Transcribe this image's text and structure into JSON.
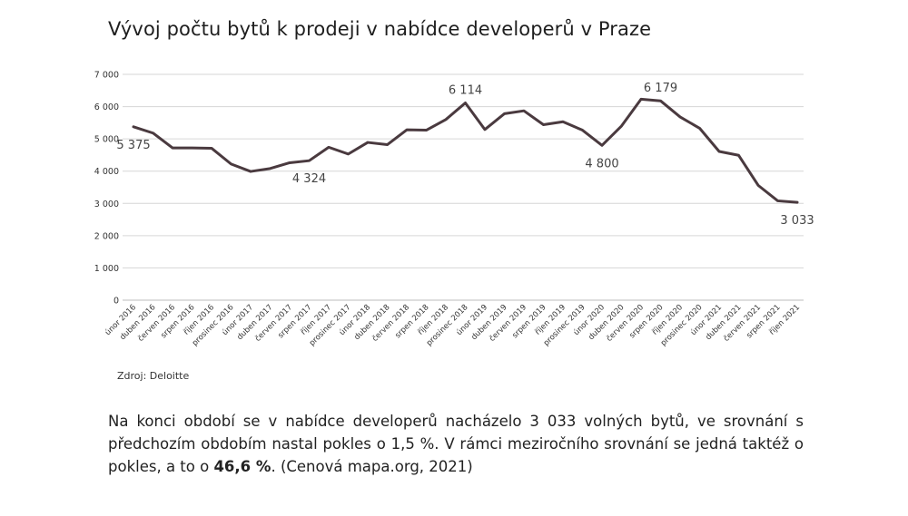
{
  "title": "Vývoj počtu bytů k prodeji v nabídce developerů v Praze",
  "source": "Zdroj: Deloitte",
  "paragraph": {
    "before": "Na konci období se v nabídce developerů nacházelo 3 033 volných bytů, ve srovnání s předchozím obdobím nastal pokles o 1,5 %. V rámci meziročního srovnání se jedná taktéž o pokles, a to o ",
    "highlight": "46,6 %",
    "after": ". (Cenová mapa.org, 2021)"
  },
  "chart_data": {
    "type": "line",
    "title": "Vývoj počtu bytů k prodeji v nabídce developerů v Praze",
    "xlabel": "",
    "ylabel": "",
    "ylim": [
      0,
      7000
    ],
    "yticks": [
      0,
      1000,
      2000,
      3000,
      4000,
      5000,
      6000,
      7000
    ],
    "ytick_labels": [
      "0",
      "1 000",
      "2 000",
      "3 000",
      "4 000",
      "5 000",
      "6 000",
      "7 000"
    ],
    "grid": true,
    "line_color": "#4a3a3f",
    "categories": [
      "únor 2016",
      "duben 2016",
      "červen 2016",
      "srpen 2016",
      "říjen 2016",
      "prosinec 2016",
      "únor 2017",
      "duben 2017",
      "červen 2017",
      "srpen 2017",
      "říjen 2017",
      "prosinec 2017",
      "únor 2018",
      "duben 2018",
      "červen 2018",
      "srpen 2018",
      "říjen 2018",
      "prosinec 2018",
      "únor 2019",
      "duben 2019",
      "červen 2019",
      "srpen 2019",
      "říjen 2019",
      "prosinec 2019",
      "únor 2020",
      "duben 2020",
      "červen 2020",
      "srpen 2020",
      "říjen 2020",
      "prosinec 2020",
      "únor 2021",
      "duben 2021",
      "červen 2021",
      "srpen 2021",
      "říjen 2021"
    ],
    "values": [
      5375,
      5180,
      4720,
      4720,
      4710,
      4220,
      3990,
      4080,
      4260,
      4324,
      4740,
      4530,
      4890,
      4820,
      5280,
      5270,
      5600,
      6114,
      5290,
      5780,
      5870,
      5440,
      5530,
      5270,
      4800,
      5400,
      6230,
      6179,
      5680,
      5330,
      4610,
      4490,
      3560,
      3080,
      3033
    ],
    "annotations": [
      {
        "index": 0,
        "text": "5 375",
        "position": "below"
      },
      {
        "index": 9,
        "text": "4 324",
        "position": "below"
      },
      {
        "index": 17,
        "text": "6 114",
        "position": "above"
      },
      {
        "index": 24,
        "text": "4 800",
        "position": "below"
      },
      {
        "index": 27,
        "text": "6 179",
        "position": "above"
      },
      {
        "index": 34,
        "text": "3 033",
        "position": "below"
      }
    ]
  }
}
